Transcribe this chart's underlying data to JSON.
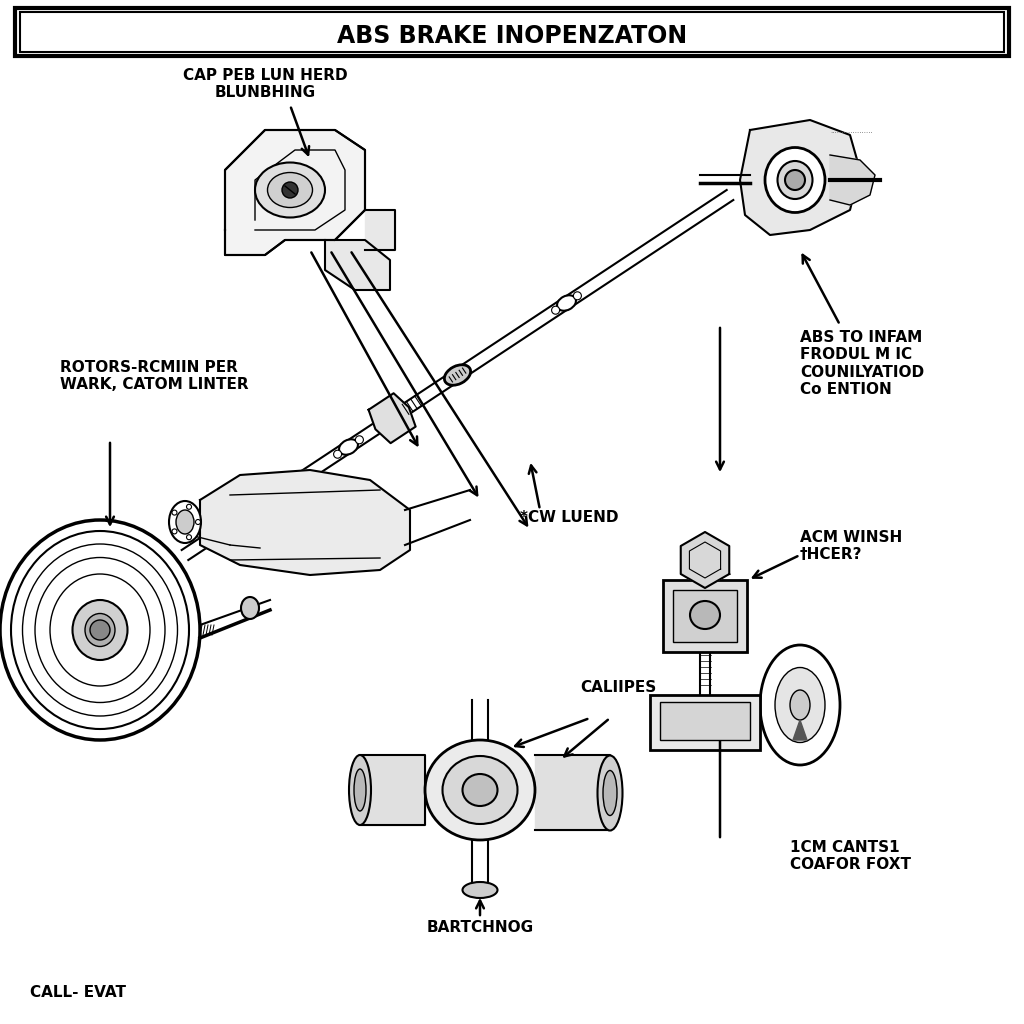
{
  "title": "ABS BRAKE INOPENZATON",
  "bg_color": "#ffffff",
  "line_color": "#000000",
  "labels": {
    "top_label": "CAP PEB LUN HERD\nBLUNBHING",
    "left_label": "ROTORS-RCMIIN PER\nWARK, CATOM LINTER",
    "center_label": "*CW LUEND",
    "right_top_label": "ABS TO INFAM\nFRODUL M IC\nCOUNILYATIOD\nCo ENTION",
    "right_mid_label": "ACM WINSH\n†HCER?",
    "bottom_center_label": "CALIIPES",
    "bottom_left_label": "BARTCHNOG",
    "bottom_right_label": "1CM CANTS1\nCOAFOR FOXT",
    "footer_label": "CALL- EVAT"
  }
}
